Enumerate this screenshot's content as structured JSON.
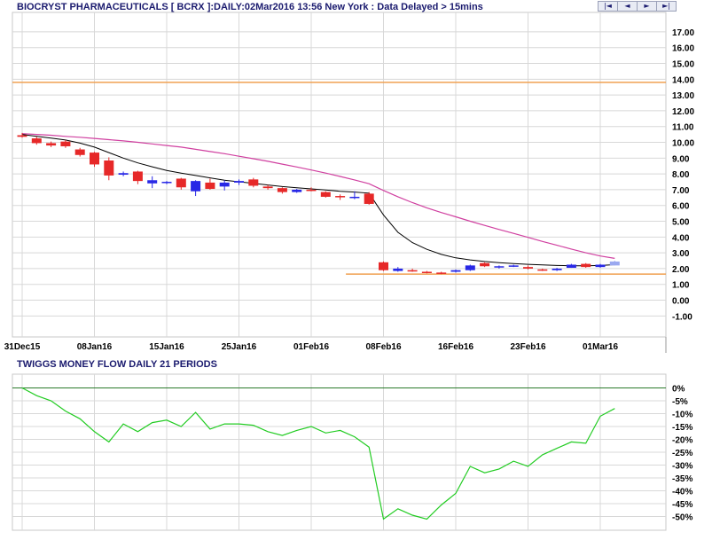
{
  "header": {
    "title": "BIOCRYST PHARMACEUTICALS [ BCRX ]:DAILY:02Mar2016 13:56 New York : Data Delayed > 15mins",
    "nav_buttons": [
      {
        "icon": "first-icon",
        "glyph": "|◄"
      },
      {
        "icon": "prev-icon",
        "glyph": "◄"
      },
      {
        "icon": "next-icon",
        "glyph": "►"
      },
      {
        "icon": "last-icon",
        "glyph": "►|"
      }
    ]
  },
  "colors": {
    "up_candle": "#2828e6",
    "down_candle": "#e62828",
    "last_candle": "#9aa8f0",
    "ma_fast": "#000000",
    "ma_slow": "#d040a0",
    "horizontal_line": "#f0a050",
    "money_flow": "#22cc22",
    "zero_line": "#2a7a2a",
    "grid": "#d8d8d8"
  },
  "chart_data": [
    {
      "type": "candlestick",
      "title": "BIOCRYST PHARMACEUTICALS [ BCRX ]:DAILY:02Mar2016 13:56 New York : Data Delayed > 15mins",
      "ylim": [
        -2,
        18
      ],
      "y_ticks": [
        "17.00",
        "16.00",
        "15.00",
        "14.00",
        "13.00",
        "12.00",
        "11.00",
        "10.00",
        "9.00",
        "8.00",
        "7.00",
        "6.00",
        "5.00",
        "4.00",
        "3.00",
        "2.00",
        "1.00",
        "0.00",
        "-1.00"
      ],
      "x_ticks": [
        {
          "label": "31Dec15",
          "index": 0
        },
        {
          "label": "08Jan16",
          "index": 5
        },
        {
          "label": "15Jan16",
          "index": 10
        },
        {
          "label": "25Jan16",
          "index": 15
        },
        {
          "label": "01Feb16",
          "index": 20
        },
        {
          "label": "08Feb16",
          "index": 25
        },
        {
          "label": "16Feb16",
          "index": 30
        },
        {
          "label": "23Feb16",
          "index": 35
        },
        {
          "label": "01Mar16",
          "index": 40
        }
      ],
      "candles": [
        {
          "o": 10.45,
          "h": 10.6,
          "l": 10.3,
          "c": 10.35
        },
        {
          "o": 10.25,
          "h": 10.35,
          "l": 9.85,
          "c": 9.95
        },
        {
          "o": 9.95,
          "h": 10.05,
          "l": 9.7,
          "c": 9.8
        },
        {
          "o": 10.05,
          "h": 10.15,
          "l": 9.65,
          "c": 9.75
        },
        {
          "o": 9.55,
          "h": 9.65,
          "l": 9.1,
          "c": 9.2
        },
        {
          "o": 9.35,
          "h": 9.4,
          "l": 8.45,
          "c": 8.6
        },
        {
          "o": 8.85,
          "h": 9.05,
          "l": 7.6,
          "c": 7.9
        },
        {
          "o": 7.95,
          "h": 8.15,
          "l": 7.85,
          "c": 8.05
        },
        {
          "o": 8.15,
          "h": 8.2,
          "l": 7.35,
          "c": 7.55
        },
        {
          "o": 7.4,
          "h": 7.85,
          "l": 7.1,
          "c": 7.6
        },
        {
          "o": 7.45,
          "h": 7.55,
          "l": 7.35,
          "c": 7.5
        },
        {
          "o": 7.7,
          "h": 7.75,
          "l": 7.0,
          "c": 7.15
        },
        {
          "o": 6.9,
          "h": 7.6,
          "l": 6.6,
          "c": 7.55
        },
        {
          "o": 7.45,
          "h": 7.7,
          "l": 7.0,
          "c": 7.05
        },
        {
          "o": 7.2,
          "h": 7.6,
          "l": 6.95,
          "c": 7.45
        },
        {
          "o": 7.45,
          "h": 7.65,
          "l": 7.3,
          "c": 7.55
        },
        {
          "o": 7.65,
          "h": 7.75,
          "l": 7.15,
          "c": 7.25
        },
        {
          "o": 7.2,
          "h": 7.3,
          "l": 7.0,
          "c": 7.1
        },
        {
          "o": 7.1,
          "h": 7.15,
          "l": 6.75,
          "c": 6.85
        },
        {
          "o": 6.85,
          "h": 7.05,
          "l": 6.8,
          "c": 7.0
        },
        {
          "o": 7.0,
          "h": 7.15,
          "l": 6.9,
          "c": 6.95
        },
        {
          "o": 6.85,
          "h": 6.9,
          "l": 6.5,
          "c": 6.55
        },
        {
          "o": 6.6,
          "h": 6.7,
          "l": 6.35,
          "c": 6.55
        },
        {
          "o": 6.55,
          "h": 6.9,
          "l": 6.4,
          "c": 6.55
        },
        {
          "o": 6.75,
          "h": 6.85,
          "l": 6.05,
          "c": 6.1
        },
        {
          "o": 2.4,
          "h": 2.45,
          "l": 1.85,
          "c": 1.9
        },
        {
          "o": 1.85,
          "h": 2.1,
          "l": 1.8,
          "c": 2.0
        },
        {
          "o": 1.9,
          "h": 2.0,
          "l": 1.8,
          "c": 1.85
        },
        {
          "o": 1.8,
          "h": 1.85,
          "l": 1.7,
          "c": 1.75
        },
        {
          "o": 1.75,
          "h": 1.8,
          "l": 1.65,
          "c": 1.7
        },
        {
          "o": 1.8,
          "h": 1.95,
          "l": 1.75,
          "c": 1.9
        },
        {
          "o": 1.9,
          "h": 2.25,
          "l": 1.85,
          "c": 2.2
        },
        {
          "o": 2.35,
          "h": 2.4,
          "l": 2.1,
          "c": 2.15
        },
        {
          "o": 2.1,
          "h": 2.2,
          "l": 2.0,
          "c": 2.15
        },
        {
          "o": 2.15,
          "h": 2.25,
          "l": 2.1,
          "c": 2.2
        },
        {
          "o": 2.1,
          "h": 2.2,
          "l": 1.95,
          "c": 2.0
        },
        {
          "o": 1.95,
          "h": 2.0,
          "l": 1.85,
          "c": 1.9
        },
        {
          "o": 1.9,
          "h": 2.05,
          "l": 1.85,
          "c": 2.0
        },
        {
          "o": 2.05,
          "h": 2.3,
          "l": 2.05,
          "c": 2.25
        },
        {
          "o": 2.3,
          "h": 2.35,
          "l": 2.05,
          "c": 2.1
        },
        {
          "o": 2.1,
          "h": 2.3,
          "l": 2.05,
          "c": 2.25
        },
        {
          "o": 2.2,
          "h": 2.5,
          "l": 2.2,
          "c": 2.45
        }
      ],
      "ma_fast": [
        10.5,
        10.38,
        10.27,
        10.15,
        9.95,
        9.7,
        9.35,
        9.0,
        8.7,
        8.45,
        8.22,
        8.05,
        7.9,
        7.75,
        7.6,
        7.5,
        7.4,
        7.3,
        7.2,
        7.12,
        7.05,
        6.98,
        6.9,
        6.85,
        6.78,
        5.4,
        4.3,
        3.65,
        3.22,
        2.9,
        2.68,
        2.55,
        2.45,
        2.38,
        2.32,
        2.27,
        2.23,
        2.2,
        2.18,
        2.18,
        2.2,
        2.25
      ],
      "ma_slow": [
        10.55,
        10.5,
        10.45,
        10.38,
        10.32,
        10.25,
        10.17,
        10.09,
        10.0,
        9.9,
        9.8,
        9.7,
        9.56,
        9.42,
        9.28,
        9.12,
        8.96,
        8.8,
        8.62,
        8.44,
        8.25,
        8.05,
        7.84,
        7.62,
        7.38,
        6.95,
        6.55,
        6.18,
        5.85,
        5.55,
        5.28,
        5.0,
        4.74,
        4.48,
        4.23,
        3.98,
        3.72,
        3.48,
        3.24,
        3.0,
        2.8,
        2.65
      ],
      "horizontal_lines": [
        {
          "y": 13.8,
          "x_start_index": -1
        },
        {
          "y": 1.65,
          "x_start_index": 22.4
        }
      ]
    },
    {
      "type": "line",
      "title": "TWIGGS MONEY FLOW DAILY 21 PERIODS",
      "ylim": [
        -52,
        2
      ],
      "y_ticks": [
        "0%",
        "-5%",
        "-10%",
        "-15%",
        "-20%",
        "-25%",
        "-30%",
        "-35%",
        "-40%",
        "-45%",
        "-50%"
      ],
      "values": [
        0,
        -3,
        -5,
        -9,
        -12,
        -17,
        -21,
        -14,
        -17,
        -13.5,
        -12.5,
        -15,
        -9.5,
        -16,
        -14,
        -14,
        -14.5,
        -17,
        -18.5,
        -16.5,
        -15,
        -17.5,
        -16.5,
        -19,
        -23,
        -51,
        -47,
        -49.5,
        -51,
        -45.5,
        -41,
        -30.5,
        -33,
        -31.5,
        -28.5,
        -30.5,
        -26,
        -23.5,
        -21,
        -21.5,
        -11,
        -8
      ]
    }
  ]
}
